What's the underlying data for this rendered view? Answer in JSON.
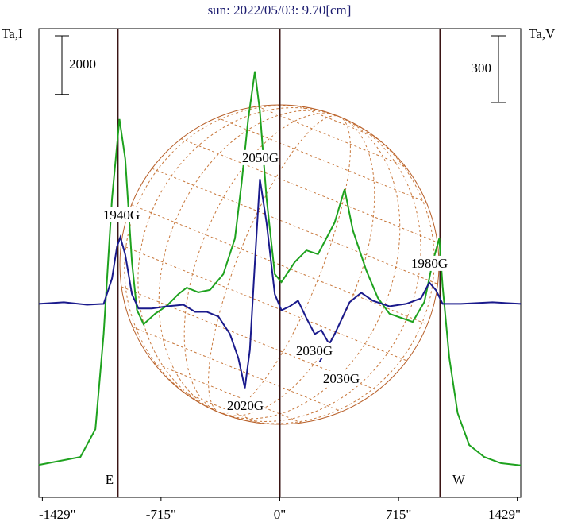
{
  "chart_data": {
    "type": "line",
    "title": "sun: 2022/05/03: 9.70[cm]",
    "ylabel": "Ta,I",
    "y2label": "Ta,V",
    "xlim": [
      -1450,
      1450
    ],
    "ylim": [
      0,
      16000
    ],
    "y2lim": [
      -870,
      1237
    ],
    "xticks": [
      {
        "value": -1429,
        "label": "-1429\""
      },
      {
        "value": -715,
        "label": "-715\""
      },
      {
        "value": 0,
        "label": "0\""
      },
      {
        "value": 715,
        "label": "715\""
      },
      {
        "value": 1429,
        "label": "1429\""
      }
    ],
    "vlines": [
      -975,
      0,
      965
    ],
    "scale_bars": [
      {
        "value": 2000,
        "axis": "y"
      },
      {
        "value": 300,
        "axis": "y2"
      }
    ],
    "annotations": [
      "1940G",
      "2050G",
      "1980G",
      "2030G",
      "2030G",
      "2020G",
      "E",
      "W"
    ],
    "series": [
      {
        "name": "Ta,I",
        "color": "#1ea21e",
        "axis": "y",
        "x": [
          -1450,
          -1200,
          -1110,
          -1060,
          -1010,
          -965,
          -930,
          -890,
          -860,
          -820,
          -750,
          -680,
          -610,
          -560,
          -490,
          -420,
          -340,
          -270,
          -230,
          -190,
          -150,
          -120,
          -80,
          -30,
          10,
          90,
          160,
          230,
          280,
          330,
          390,
          440,
          520,
          590,
          660,
          730,
          800,
          870,
          920,
          960,
          980,
          1020,
          1070,
          1140,
          1230,
          1330,
          1450
        ],
        "values": [
          1110,
          1380,
          2330,
          5590,
          10200,
          12910,
          11550,
          8030,
          6400,
          5910,
          6270,
          6540,
          6940,
          7160,
          7000,
          7080,
          7620,
          8840,
          10740,
          12910,
          14540,
          13180,
          10200,
          7620,
          7350,
          8030,
          8430,
          8300,
          8840,
          9380,
          10520,
          9110,
          7760,
          6810,
          6270,
          6130,
          5990,
          6670,
          8030,
          8840,
          7210,
          4770,
          2880,
          1790,
          1380,
          1170,
          1090
        ]
      },
      {
        "name": "Ta,V",
        "color": "#1a1a8c",
        "axis": "y2",
        "x": [
          -1450,
          -1300,
          -1160,
          -1060,
          -1010,
          -980,
          -960,
          -930,
          -890,
          -850,
          -770,
          -680,
          -580,
          -510,
          -440,
          -370,
          -300,
          -250,
          -210,
          -180,
          -150,
          -120,
          -80,
          -30,
          10,
          60,
          110,
          160,
          210,
          250,
          290,
          290,
          240,
          330,
          420,
          490,
          560,
          660,
          760,
          850,
          900,
          940,
          980,
          1090,
          1280,
          1450
        ],
        "values": [
          0,
          7,
          -4,
          0,
          114,
          257,
          300,
          221,
          43,
          -21,
          -21,
          -11,
          -4,
          -36,
          -36,
          -57,
          -136,
          -243,
          -379,
          -207,
          186,
          561,
          364,
          43,
          -29,
          -11,
          14,
          -64,
          -136,
          -118,
          -171,
          null,
          -261,
          -136,
          7,
          50,
          14,
          -11,
          0,
          25,
          96,
          61,
          0,
          0,
          7,
          0
        ]
      }
    ]
  }
}
